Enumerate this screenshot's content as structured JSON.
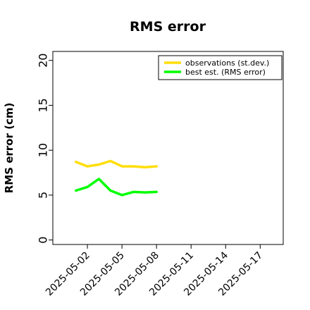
{
  "chart_data": {
    "type": "line",
    "title": "RMS error",
    "xlabel": "",
    "ylabel": "RMS error (cm)",
    "xlim": [
      "2025-04-29",
      "2025-05-19"
    ],
    "ylim": [
      -0.5,
      21
    ],
    "yticks": [
      0,
      5,
      10,
      15,
      20
    ],
    "xticks": [
      "2025-05-02",
      "2025-05-05",
      "2025-05-08",
      "2025-05-11",
      "2025-05-14",
      "2025-05-17"
    ],
    "highlighted_xtick": "2025-05-08",
    "highlight_color": "#228b22",
    "legend_position": "top-right",
    "series": [
      {
        "name": "observations (st.dev.)",
        "color": "#ffde0a",
        "x": [
          "2025-05-01",
          "2025-05-02",
          "2025-05-03",
          "2025-05-04",
          "2025-05-05",
          "2025-05-06",
          "2025-05-07",
          "2025-05-08"
        ],
        "y": [
          8.7,
          8.2,
          8.4,
          8.8,
          8.2,
          8.2,
          8.1,
          8.2
        ]
      },
      {
        "name": "best est. (RMS error)",
        "color": "#00ff00",
        "x": [
          "2025-05-01",
          "2025-05-02",
          "2025-05-03",
          "2025-05-04",
          "2025-05-05",
          "2025-05-06",
          "2025-05-07",
          "2025-05-08"
        ],
        "y": [
          5.5,
          5.9,
          6.8,
          5.5,
          5.0,
          5.35,
          5.3,
          5.35
        ]
      }
    ]
  }
}
